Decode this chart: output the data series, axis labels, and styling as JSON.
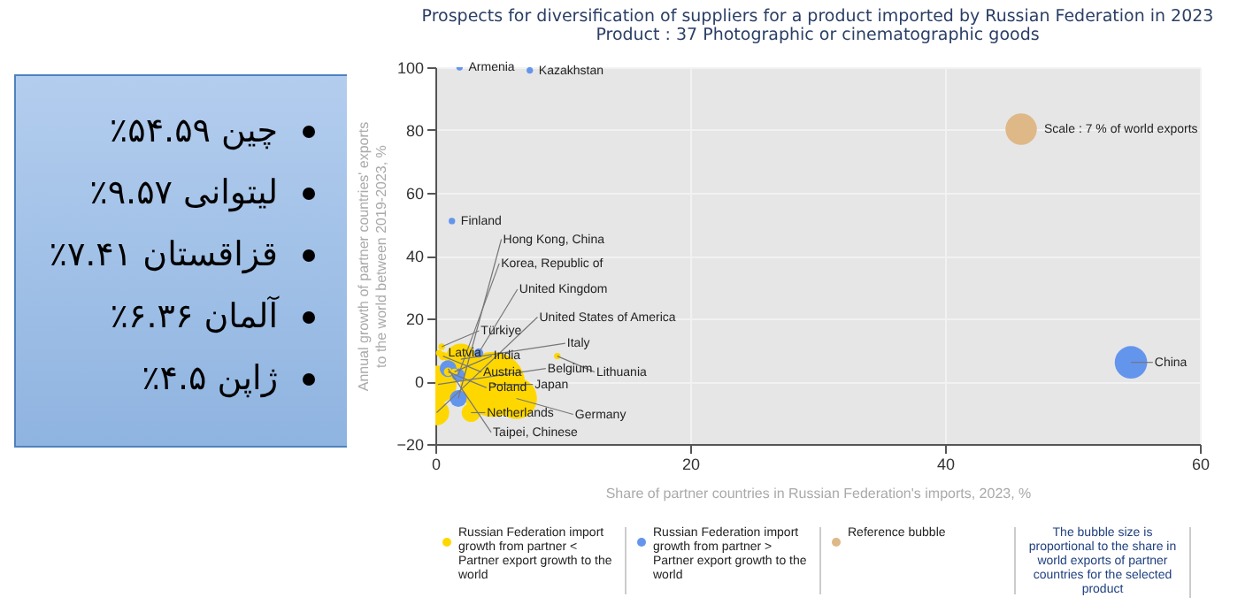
{
  "chart_data": [
    {
      "type": "other",
      "annotations": [
        "چین ۵۴.۵۹٪",
        "لیتوانی ۹.۵۷٪",
        "قزاقستان ۷.۴۱٪",
        "آلمان ۶.۳۶٪",
        "ژاپن ۴.۵٪"
      ]
    },
    {
      "type": "bubble",
      "title": "Prospects for diversification of suppliers for a product imported by Russian Federation in 2023",
      "subtitle": "Product : 37 Photographic or cinematographic goods",
      "xlabel": "Share of partner countries in Russian Federation's imports, 2023, %",
      "ylabel": "Annual growth of partner countries' exports to the world between 2019-2023, %",
      "xlim": [
        0,
        60
      ],
      "xticks": [
        0,
        20,
        40,
        60
      ],
      "ylim": [
        -20,
        100
      ],
      "yticks": [
        -20,
        0,
        20,
        40,
        60,
        80,
        100
      ],
      "grid": true,
      "legend": "bottom",
      "series": [
        {
          "name": "Russian Federation import growth from partner < Partner export growth to the world",
          "color": "#ffd700",
          "x": [
            0.3,
            0.6,
            1.5,
            2,
            0.5,
            4.5,
            1,
            0.2,
            6.36,
            2.8,
            0.1,
            9.57
          ],
          "values": [
            9,
            8,
            3,
            7,
            11,
            -1,
            3,
            -1,
            -5.5,
            -10,
            -10,
            8
          ],
          "sizes": [
            0.3,
            0.5,
            0.3,
            7,
            0.3,
            30,
            0.5,
            10,
            12,
            2.5,
            4.5,
            0.3
          ]
        },
        {
          "name": "Russian Federation import growth from partner > Partner export growth to the world",
          "color": "#6495ed",
          "x": [
            1.9,
            7.41,
            1.3,
            3.4,
            1,
            1.8,
            1.8,
            54.59
          ],
          "values": [
            100,
            99,
            51,
            9,
            4,
            2,
            -5.5,
            6
          ],
          "sizes": [
            0.3,
            0.3,
            0.3,
            0.6,
            2,
            1.2,
            2,
            7.5
          ]
        }
      ],
      "size_legend": [
        {
          "value": 7,
          "label": "Scale : 7 % of world exports"
        }
      ],
      "annotations": [
        {
          "text": "Latvia",
          "x": 0.3,
          "y": 9
        },
        {
          "text": "Austria",
          "x": 0.6,
          "y": 8
        },
        {
          "text": "India",
          "x": 1.5,
          "y": 3
        },
        {
          "text": "Italy",
          "x": 2,
          "y": 7
        },
        {
          "text": "Türkiye",
          "x": 0.5,
          "y": 11
        },
        {
          "text": "Japan",
          "x": 4.5,
          "y": -1
        },
        {
          "text": "Poland",
          "x": 1,
          "y": 3
        },
        {
          "text": "Belgium",
          "x": 0.2,
          "y": -1
        },
        {
          "text": "Germany",
          "x": 6.36,
          "y": -5.5
        },
        {
          "text": "Netherlands",
          "x": 2.8,
          "y": -10
        },
        {
          "text": "United States of America",
          "x": 0.1,
          "y": -10
        },
        {
          "text": "Lithuania",
          "x": 9.57,
          "y": 8
        },
        {
          "text": "Armenia",
          "x": 1.9,
          "y": 100
        },
        {
          "text": "Kazakhstan",
          "x": 7.41,
          "y": 99
        },
        {
          "text": "Finland",
          "x": 1.3,
          "y": 51
        },
        {
          "text": "United Kingdom",
          "x": 3.4,
          "y": 9
        },
        {
          "text": "Taipei, Chinese",
          "x": 1,
          "y": 4
        },
        {
          "text": "Korea, Republic of",
          "x": 1.8,
          "y": 2
        },
        {
          "text": "Hong Kong, China",
          "x": 1.8,
          "y": -5.5
        },
        {
          "text": "China",
          "x": 54.59,
          "y": 6
        },
        "Reference bubble",
        "The bubble size is proportional to the share in world exports of partner countries for the selected product"
      ]
    }
  ]
}
